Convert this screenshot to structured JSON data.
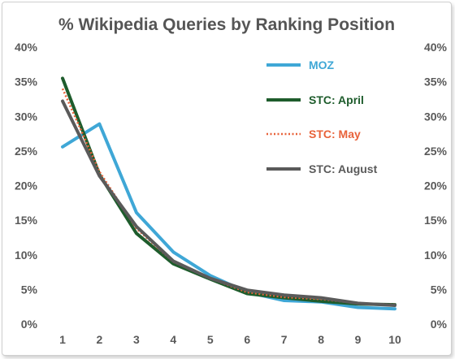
{
  "chart_data": {
    "type": "line",
    "title": "% Wikipedia Queries by Ranking Position",
    "xlabel": "",
    "ylabel": "",
    "x": [
      1,
      2,
      3,
      4,
      5,
      6,
      7,
      8,
      9,
      10
    ],
    "ylim": [
      0,
      40
    ],
    "y_ticks": [
      "0%",
      "5%",
      "10%",
      "15%",
      "20%",
      "25%",
      "30%",
      "35%",
      "40%"
    ],
    "y_tick_values": [
      0,
      5,
      10,
      15,
      20,
      25,
      30,
      35,
      40
    ],
    "grid": false,
    "y_axis_both_sides": true,
    "legend_position": "top-right",
    "series": [
      {
        "name": "MOZ",
        "color": "#3fa7d6",
        "dash": "solid",
        "values": [
          25.6,
          28.9,
          16.1,
          10.4,
          7.0,
          4.6,
          3.4,
          3.2,
          2.4,
          2.2
        ]
      },
      {
        "name": "STC: April",
        "color": "#1e5c2c",
        "dash": "solid",
        "values": [
          35.5,
          21.6,
          13.1,
          8.7,
          6.5,
          4.4,
          3.8,
          3.3,
          2.9,
          2.8
        ]
      },
      {
        "name": "STC: May",
        "color": "#e8623a",
        "dash": "dotted",
        "values": [
          34.0,
          22.0,
          13.8,
          9.0,
          6.6,
          4.6,
          3.9,
          3.6,
          3.0,
          2.8
        ]
      },
      {
        "name": "STC: August",
        "color": "#5a5a5a",
        "dash": "solid",
        "values": [
          32.2,
          21.4,
          14.1,
          9.1,
          6.6,
          4.9,
          4.2,
          3.8,
          3.0,
          2.7
        ]
      }
    ]
  }
}
